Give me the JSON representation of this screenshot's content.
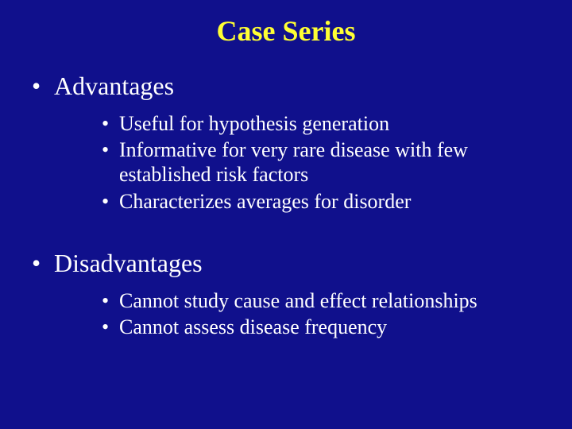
{
  "background_color": "#10108c",
  "title_color": "#ffff33",
  "text_color": "#ffffff",
  "font_family": "Times New Roman",
  "title": {
    "text": "Case Series",
    "fontsize": 36,
    "bold": true
  },
  "body": {
    "level1_fontsize": 32,
    "level2_fontsize": 26,
    "items": [
      {
        "label": "Advantages",
        "sub": [
          "Useful for hypothesis generation",
          "Informative for very rare disease with few established risk factors",
          "Characterizes averages for disorder"
        ]
      },
      {
        "label": "Disadvantages",
        "sub": [
          "Cannot study cause and effect relationships",
          "Cannot assess disease frequency"
        ]
      }
    ]
  }
}
